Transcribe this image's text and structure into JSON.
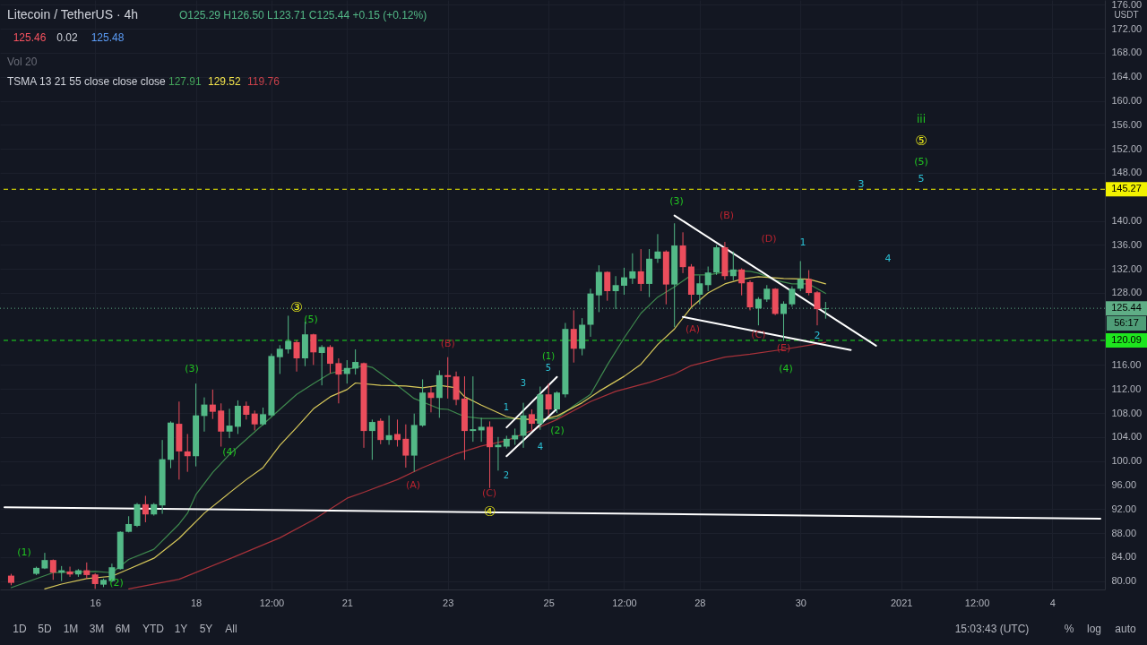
{
  "chart_data": {
    "type": "candlestick",
    "title": "Litecoin / TetherUS · 4h",
    "subtitle": "O125.29 H126.50 L123.71 C125.44 +0.15 (+0.12%)",
    "x": [
      "2020-12-14T08:00",
      "2020-12-14T20:00",
      "2020-12-15T00:00",
      "2020-12-15T04:00",
      "2020-12-15T08:00",
      "2020-12-15T12:00",
      "2020-12-15T16:00",
      "2020-12-15T20:00",
      "2020-12-16T00:00",
      "2020-12-16T04:00",
      "2020-12-16T08:00",
      "2020-12-16T12:00",
      "2020-12-16T16:00",
      "2020-12-16T20:00",
      "2020-12-17T00:00",
      "2020-12-17T04:00",
      "2020-12-17T08:00",
      "2020-12-17T12:00",
      "2020-12-17T16:00",
      "2020-12-17T20:00",
      "2020-12-18T00:00",
      "2020-12-18T04:00",
      "2020-12-18T08:00",
      "2020-12-18T12:00",
      "2020-12-18T16:00",
      "2020-12-18T20:00",
      "2020-12-19T00:00",
      "2020-12-19T04:00",
      "2020-12-19T08:00",
      "2020-12-19T12:00",
      "2020-12-19T16:00",
      "2020-12-19T20:00",
      "2020-12-20T00:00",
      "2020-12-20T04:00",
      "2020-12-20T08:00",
      "2020-12-20T12:00",
      "2020-12-20T16:00",
      "2020-12-20T20:00",
      "2020-12-21T00:00",
      "2020-12-21T04:00",
      "2020-12-21T08:00",
      "2020-12-21T12:00",
      "2020-12-21T16:00",
      "2020-12-21T20:00",
      "2020-12-22T00:00",
      "2020-12-22T04:00",
      "2020-12-22T08:00",
      "2020-12-22T12:00",
      "2020-12-22T16:00",
      "2020-12-22T20:00",
      "2020-12-23T00:00",
      "2020-12-23T04:00",
      "2020-12-23T08:00",
      "2020-12-23T12:00",
      "2020-12-23T16:00",
      "2020-12-23T20:00",
      "2020-12-24T00:00",
      "2020-12-24T04:00",
      "2020-12-24T08:00",
      "2020-12-24T12:00",
      "2020-12-24T16:00",
      "2020-12-24T20:00",
      "2020-12-25T00:00",
      "2020-12-25T04:00",
      "2020-12-25T08:00",
      "2020-12-25T12:00",
      "2020-12-25T16:00",
      "2020-12-25T20:00",
      "2020-12-26T00:00",
      "2020-12-26T04:00",
      "2020-12-26T08:00",
      "2020-12-26T12:00",
      "2020-12-26T16:00",
      "2020-12-26T20:00",
      "2020-12-27T00:00",
      "2020-12-27T04:00",
      "2020-12-27T08:00",
      "2020-12-27T12:00",
      "2020-12-27T16:00",
      "2020-12-27T20:00",
      "2020-12-28T00:00",
      "2020-12-28T04:00",
      "2020-12-28T08:00",
      "2020-12-28T12:00",
      "2020-12-28T16:00",
      "2020-12-28T20:00",
      "2020-12-29T00:00",
      "2020-12-29T04:00",
      "2020-12-29T08:00",
      "2020-12-29T12:00",
      "2020-12-29T16:00",
      "2020-12-29T20:00",
      "2020-12-30T00:00",
      "2020-12-30T04:00",
      "2020-12-30T08:00",
      "2020-12-30T12:00"
    ],
    "ohlc": [
      [
        80.9,
        81.2,
        79.3,
        79.7
      ],
      [
        81.2,
        82.4,
        81.0,
        82.2
      ],
      [
        82.1,
        84.7,
        82.0,
        83.5
      ],
      [
        83.5,
        83.6,
        80.2,
        81.4
      ],
      [
        81.4,
        82.5,
        80.0,
        81.8
      ],
      [
        81.6,
        82.4,
        80.7,
        81.1
      ],
      [
        81.1,
        82.0,
        80.7,
        81.8
      ],
      [
        81.8,
        83.1,
        80.4,
        81.0
      ],
      [
        81.1,
        81.3,
        78.7,
        79.5
      ],
      [
        79.4,
        80.4,
        79.0,
        80.2
      ],
      [
        80.0,
        82.9,
        79.8,
        82.3
      ],
      [
        82.0,
        88.3,
        81.9,
        88.2
      ],
      [
        88.2,
        90.8,
        88.1,
        89.5
      ],
      [
        89.2,
        93.0,
        89.0,
        92.8
      ],
      [
        92.8,
        94.2,
        89.8,
        91.1
      ],
      [
        91.1,
        93.0,
        90.9,
        92.8
      ],
      [
        92.6,
        103.5,
        91.2,
        100.3
      ],
      [
        100.2,
        106.6,
        98.8,
        106.4
      ],
      [
        106.2,
        109.9,
        96.9,
        101.6
      ],
      [
        101.6,
        104.5,
        98.2,
        100.8
      ],
      [
        100.8,
        112.9,
        99.1,
        107.6
      ],
      [
        107.5,
        110.6,
        104.9,
        109.4
      ],
      [
        109.4,
        111.9,
        107.0,
        108.2
      ],
      [
        108.4,
        109.6,
        102.4,
        104.9
      ],
      [
        104.9,
        108.7,
        103.8,
        105.9
      ],
      [
        105.7,
        110.1,
        104.5,
        109.2
      ],
      [
        109.2,
        109.9,
        106.9,
        107.7
      ],
      [
        107.9,
        108.4,
        105.1,
        106.1
      ],
      [
        106.1,
        108.9,
        105.9,
        107.8
      ],
      [
        107.6,
        117.9,
        107.4,
        117.5
      ],
      [
        117.3,
        119.3,
        114.5,
        118.7
      ],
      [
        118.6,
        124.2,
        117.9,
        120.0
      ],
      [
        119.8,
        120.1,
        114.9,
        117.1
      ],
      [
        117.1,
        123.2,
        115.8,
        121.1
      ],
      [
        121.1,
        121.2,
        116.0,
        118.1
      ],
      [
        118.0,
        119.3,
        112.6,
        119.0
      ],
      [
        119.0,
        119.3,
        114.6,
        116.2
      ],
      [
        116.3,
        117.1,
        109.6,
        114.4
      ],
      [
        114.5,
        116.8,
        112.9,
        115.5
      ],
      [
        115.4,
        118.6,
        114.4,
        116.5
      ],
      [
        116.3,
        116.4,
        102.2,
        105.0
      ],
      [
        105.0,
        106.9,
        100.2,
        106.5
      ],
      [
        106.7,
        107.1,
        102.8,
        103.5
      ],
      [
        103.5,
        107.6,
        102.7,
        104.3
      ],
      [
        104.5,
        106.9,
        102.4,
        103.5
      ],
      [
        103.7,
        106.1,
        98.9,
        100.9
      ],
      [
        100.9,
        107.9,
        98.2,
        106.0
      ],
      [
        105.9,
        113.6,
        105.7,
        111.4
      ],
      [
        111.4,
        112.4,
        108.1,
        110.5
      ],
      [
        110.5,
        115.1,
        107.2,
        114.3
      ],
      [
        114.3,
        117.3,
        110.4,
        114.0
      ],
      [
        114.1,
        114.9,
        109.3,
        110.2
      ],
      [
        110.4,
        114.1,
        100.2,
        105.0
      ],
      [
        105.0,
        114.1,
        103.2,
        105.3
      ],
      [
        105.1,
        107.2,
        103.2,
        105.7
      ],
      [
        105.7,
        106.6,
        95.5,
        102.3
      ],
      [
        102.3,
        104.0,
        98.4,
        102.7
      ],
      [
        102.4,
        104.2,
        102.1,
        103.7
      ],
      [
        103.6,
        105.4,
        102.7,
        104.3
      ],
      [
        104.2,
        109.7,
        102.2,
        107.6
      ],
      [
        107.8,
        108.6,
        105.2,
        106.2
      ],
      [
        106.2,
        112.4,
        105.2,
        111.1
      ],
      [
        111.1,
        112.9,
        107.6,
        108.6
      ],
      [
        108.6,
        111.6,
        108.0,
        111.4
      ],
      [
        111.1,
        123.0,
        110.6,
        122.0
      ],
      [
        122.0,
        125.1,
        116.4,
        118.7
      ],
      [
        118.7,
        123.8,
        117.6,
        122.7
      ],
      [
        122.7,
        128.7,
        120.7,
        127.9
      ],
      [
        127.6,
        132.6,
        124.8,
        131.5
      ],
      [
        131.5,
        131.6,
        126.7,
        128.3
      ],
      [
        128.3,
        130.8,
        125.3,
        129.3
      ],
      [
        129.2,
        132.2,
        127.7,
        130.6
      ],
      [
        130.4,
        134.6,
        129.5,
        131.6
      ],
      [
        131.6,
        135.3,
        128.3,
        129.5
      ],
      [
        129.5,
        135.3,
        127.3,
        133.7
      ],
      [
        133.7,
        137.8,
        133.0,
        134.9
      ],
      [
        134.9,
        135.1,
        126.1,
        129.4
      ],
      [
        129.4,
        139.6,
        122.3,
        135.9
      ],
      [
        135.9,
        138.1,
        131.3,
        132.3
      ],
      [
        132.4,
        132.8,
        125.8,
        127.7
      ],
      [
        127.7,
        130.9,
        126.1,
        129.6
      ],
      [
        129.3,
        132.4,
        128.3,
        131.4
      ],
      [
        131.4,
        136.0,
        131.0,
        135.6
      ],
      [
        135.6,
        136.5,
        130.2,
        130.8
      ],
      [
        130.8,
        134.9,
        130.1,
        131.9
      ],
      [
        131.9,
        132.1,
        127.6,
        129.6
      ],
      [
        129.8,
        130.1,
        125.1,
        125.6
      ],
      [
        125.4,
        127.3,
        122.6,
        127.0
      ],
      [
        126.9,
        129.3,
        126.5,
        128.7
      ],
      [
        128.7,
        128.8,
        124.3,
        124.5
      ],
      [
        124.5,
        126.6,
        120.0,
        126.2
      ],
      [
        126.1,
        129.1,
        125.7,
        128.7
      ],
      [
        128.7,
        133.3,
        128.3,
        130.3
      ],
      [
        130.3,
        131.8,
        127.6,
        128.0
      ],
      [
        128.1,
        128.3,
        122.6,
        125.29
      ],
      [
        125.29,
        126.5,
        123.71,
        125.44
      ]
    ],
    "colors": [
      "#eb4d5c",
      "#53b987",
      "#53b987",
      "#eb4d5c",
      "#53b987",
      "#eb4d5c",
      "#53b987",
      "#eb4d5c",
      "#eb4d5c",
      "#53b987",
      "#53b987",
      "#53b987",
      "#53b987",
      "#53b987",
      "#eb4d5c",
      "#53b987",
      "#53b987",
      "#53b987",
      "#eb4d5c",
      "#eb4d5c",
      "#53b987",
      "#53b987",
      "#eb4d5c",
      "#eb4d5c",
      "#53b987",
      "#53b987",
      "#eb4d5c",
      "#eb4d5c",
      "#53b987",
      "#53b987",
      "#53b987",
      "#53b987",
      "#eb4d5c",
      "#53b987",
      "#eb4d5c",
      "#53b987",
      "#eb4d5c",
      "#eb4d5c",
      "#53b987",
      "#53b987",
      "#eb4d5c",
      "#53b987",
      "#eb4d5c",
      "#53b987",
      "#eb4d5c",
      "#eb4d5c",
      "#53b987",
      "#53b987",
      "#eb4d5c",
      "#53b987",
      "#eb4d5c",
      "#eb4d5c",
      "#eb4d5c",
      "#53b987",
      "#53b987",
      "#eb4d5c",
      "#53b987",
      "#53b987",
      "#53b987",
      "#53b987",
      "#eb4d5c",
      "#53b987",
      "#eb4d5c",
      "#53b987",
      "#53b987",
      "#eb4d5c",
      "#53b987",
      "#53b987",
      "#53b987",
      "#eb4d5c",
      "#53b987",
      "#53b987",
      "#53b987",
      "#eb4d5c",
      "#53b987",
      "#53b987",
      "#eb4d5c",
      "#53b987",
      "#eb4d5c",
      "#eb4d5c",
      "#53b987",
      "#53b987",
      "#53b987",
      "#eb4d5c",
      "#53b987",
      "#eb4d5c",
      "#eb4d5c",
      "#53b987",
      "#53b987",
      "#eb4d5c",
      "#53b987",
      "#53b987",
      "#53b987",
      "#eb4d5c",
      "#eb4d5c",
      "#53b987"
    ],
    "series": [
      {
        "type": "line",
        "color": "#3f8a4e",
        "x": [
          "2020-12-14T08:00",
          "2020-12-15T04:00",
          "2020-12-16T00:00",
          "2020-12-16T08:00",
          "2020-12-16T16:00",
          "2020-12-17T04:00",
          "2020-12-17T16:00",
          "2020-12-17T20:00",
          "2020-12-18T00:00",
          "2020-12-18T08:00",
          "2020-12-18T16:00",
          "2020-12-19T00:00",
          "2020-12-19T08:00",
          "2020-12-19T16:00",
          "2020-12-20T00:00",
          "2020-12-20T08:00",
          "2020-12-20T16:00",
          "2020-12-21T08:00",
          "2020-12-21T12:00",
          "2020-12-22T00:00",
          "2020-12-22T08:00",
          "2020-12-22T20:00",
          "2020-12-23T00:00",
          "2020-12-23T08:00",
          "2020-12-23T16:00",
          "2020-12-24T04:00",
          "2020-12-24T20:00",
          "2020-12-25T04:00",
          "2020-12-25T12:00",
          "2020-12-25T20:00",
          "2020-12-26T04:00",
          "2020-12-26T12:00",
          "2020-12-26T20:00",
          "2020-12-27T04:00",
          "2020-12-27T12:00",
          "2020-12-27T20:00",
          "2020-12-28T04:00",
          "2020-12-28T16:00",
          "2020-12-29T00:00",
          "2020-12-29T04:00",
          "2020-12-29T12:00",
          "2020-12-29T20:00",
          "2020-12-30T04:00",
          "2020-12-30T12:00"
        ],
        "values": [
          78.9,
          81.4,
          81.6,
          81.4,
          83.6,
          85.3,
          89.5,
          91.3,
          94.4,
          98.1,
          101.1,
          103.6,
          106.1,
          108.6,
          111.1,
          112.9,
          114.6,
          115.9,
          115.6,
          112.6,
          110.4,
          108.7,
          108.6,
          107.4,
          107.1,
          107.1,
          106.9,
          107.1,
          109.2,
          111.1,
          116.0,
          120.5,
          124.6,
          127.3,
          129.0,
          131.0,
          131.0,
          131.7,
          131.6,
          131.3,
          130.1,
          129.5,
          129.5,
          127.91
        ]
      },
      {
        "type": "line",
        "color": "#d8c95a",
        "x": [
          "2020-12-15T00:00",
          "2020-12-15T08:00",
          "2020-12-15T20:00",
          "2020-12-16T08:00",
          "2020-12-16T16:00",
          "2020-12-17T04:00",
          "2020-12-17T16:00",
          "2020-12-18T04:00",
          "2020-12-18T16:00",
          "2020-12-19T00:00",
          "2020-12-19T08:00",
          "2020-12-19T16:00",
          "2020-12-20T00:00",
          "2020-12-20T08:00",
          "2020-12-20T16:00",
          "2020-12-21T00:00",
          "2020-12-21T04:00",
          "2020-12-21T16:00",
          "2020-12-22T04:00",
          "2020-12-22T12:00",
          "2020-12-22T20:00",
          "2020-12-23T04:00",
          "2020-12-23T08:00",
          "2020-12-23T16:00",
          "2020-12-24T04:00",
          "2020-12-24T08:00",
          "2020-12-24T20:00",
          "2020-12-25T04:00",
          "2020-12-25T16:00",
          "2020-12-26T00:00",
          "2020-12-26T12:00",
          "2020-12-26T20:00",
          "2020-12-27T04:00",
          "2020-12-27T12:00",
          "2020-12-27T20:00",
          "2020-12-28T04:00",
          "2020-12-28T12:00",
          "2020-12-28T20:00",
          "2020-12-29T04:00",
          "2020-12-29T16:00",
          "2020-12-30T04:00",
          "2020-12-30T12:00"
        ],
        "values": [
          78.7,
          79.5,
          80.4,
          80.8,
          82.0,
          83.8,
          87.1,
          91.3,
          94.7,
          96.9,
          98.9,
          102.6,
          105.6,
          108.7,
          110.7,
          111.9,
          113.0,
          112.6,
          112.5,
          112.2,
          112.6,
          112.2,
          110.7,
          109.3,
          107.4,
          107.1,
          106.8,
          107.5,
          109.7,
          111.6,
          114.1,
          116.1,
          119.4,
          122.0,
          125.6,
          128.0,
          129.5,
          130.3,
          130.7,
          130.4,
          130.3,
          129.52
        ]
      },
      {
        "type": "line",
        "color": "#a8323a",
        "x": [
          "2020-12-16T16:00",
          "2020-12-17T16:00",
          "2020-12-18T16:00",
          "2020-12-19T16:00",
          "2020-12-20T08:00",
          "2020-12-21T00:00",
          "2020-12-21T08:00",
          "2020-12-22T00:00",
          "2020-12-22T12:00",
          "2020-12-23T04:00",
          "2020-12-23T16:00",
          "2020-12-24T04:00",
          "2020-12-24T16:00",
          "2020-12-25T04:00",
          "2020-12-25T20:00",
          "2020-12-26T08:00",
          "2020-12-27T00:00",
          "2020-12-27T12:00",
          "2020-12-27T20:00",
          "2020-12-28T12:00",
          "2020-12-29T00:00",
          "2020-12-29T16:00",
          "2020-12-30T04:00",
          "2020-12-30T12:00"
        ],
        "values": [
          78.7,
          80.3,
          83.7,
          87.2,
          90.2,
          93.8,
          94.8,
          96.9,
          98.9,
          101.2,
          102.5,
          103.4,
          105.1,
          106.9,
          109.9,
          111.6,
          113.1,
          114.5,
          115.9,
          117.3,
          117.8,
          118.6,
          119.3,
          119.76
        ]
      },
      {
        "type": "line",
        "color": "#ffffff",
        "x": [
          "2020-12-14T04:49",
          "2021-01-04T22:54"
        ],
        "values": [
          92.3,
          90.4
        ]
      },
      {
        "type": "line",
        "color": "#ffffff",
        "x": [
          "2020-12-24T04:00",
          "2020-12-25T04:00"
        ],
        "values": [
          105.6,
          114.0
        ]
      },
      {
        "type": "line",
        "color": "#ffffff",
        "x": [
          "2020-12-24T04:00",
          "2020-12-25T04:00"
        ],
        "values": [
          100.8,
          108.7
        ]
      },
      {
        "type": "line",
        "color": "#ffffff",
        "x": [
          "2020-12-27T12:00",
          "2020-12-31T12:00"
        ],
        "values": [
          140.9,
          119.2
        ]
      },
      {
        "type": "line",
        "color": "#ffffff",
        "x": [
          "2020-12-27T16:00",
          "2020-12-31T00:00"
        ],
        "values": [
          124.0,
          118.5
        ]
      }
    ],
    "xlim": [
      "2020-12-14T04:49",
      "2021-01-04T22:54"
    ],
    "xticks": [
      {
        "value": "2020-12-16",
        "label": "16"
      },
      {
        "value": "2020-12-18",
        "label": "18"
      },
      {
        "value": "2020-12-19T12:00",
        "label": "12:00"
      },
      {
        "value": "2020-12-21",
        "label": "21"
      },
      {
        "value": "2020-12-23",
        "label": "23"
      },
      {
        "value": "2020-12-25",
        "label": "25"
      },
      {
        "value": "2020-12-26T12:00",
        "label": "12:00"
      },
      {
        "value": "2020-12-28",
        "label": "28"
      },
      {
        "value": "2020-12-30",
        "label": "30"
      },
      {
        "value": "2021-01-01",
        "label": "2021"
      },
      {
        "value": "2021-01-02T12:00",
        "label": "12:00"
      },
      {
        "value": "2021-01-04",
        "label": "4"
      }
    ],
    "ylim": [
      78.6,
      176.8
    ],
    "yticks": [
      {
        "value": 176,
        "label": "176.00"
      },
      {
        "value": 172,
        "label": "172.00"
      },
      {
        "value": 168,
        "label": "168.00"
      },
      {
        "value": 164,
        "label": "164.00"
      },
      {
        "value": 160,
        "label": "160.00"
      },
      {
        "value": 156,
        "label": "156.00"
      },
      {
        "value": 152,
        "label": "152.00"
      },
      {
        "value": 148,
        "label": "148.00"
      },
      {
        "value": 140,
        "label": "140.00"
      },
      {
        "value": 136,
        "label": "136.00"
      },
      {
        "value": 132,
        "label": "132.00"
      },
      {
        "value": 128,
        "label": "128.00"
      },
      {
        "value": 116,
        "label": "116.00"
      },
      {
        "value": 112,
        "label": "112.00"
      },
      {
        "value": 108,
        "label": "108.00"
      },
      {
        "value": 104,
        "label": "104.00"
      },
      {
        "value": 100,
        "label": "100.00"
      },
      {
        "value": 96,
        "label": "96.00"
      },
      {
        "value": 92,
        "label": "92.00"
      },
      {
        "value": 88,
        "label": "88.00"
      },
      {
        "value": 84,
        "label": "84.00"
      },
      {
        "value": 80,
        "label": "80.00"
      }
    ],
    "grid": true,
    "ref_lines": [
      {
        "axis": "y",
        "value": 145.27,
        "label": "145.27",
        "color": "#f2f200",
        "line_style": "dashed"
      },
      {
        "axis": "y",
        "value": 125.44,
        "label": "125.44",
        "color": "#5fae86",
        "line_style": "dotted"
      },
      {
        "axis": "y",
        "value": 120.09,
        "label": "120.09",
        "color": "#1ee61e",
        "line_style": "dashed"
      }
    ],
    "annotations": [
      "125.46",
      "0.02",
      "125.48",
      "Vol 20",
      "TSMA 13 21 55 close close close",
      "127.91",
      "129.52",
      "119.76",
      "USDT",
      "56:17",
      "1D",
      "5D",
      "1M",
      "3M",
      "6M",
      "YTD",
      "1Y",
      "5Y",
      "All",
      "15:03:43 (UTC)",
      "%",
      "log",
      "auto",
      "(1)",
      "(2)",
      "(3)",
      "(5)",
      "(A)",
      "(C)",
      "1",
      "2",
      "3",
      "4",
      "5",
      "(1)",
      "(2)",
      "(3)",
      "(A)",
      "(B)",
      "(D)",
      "(4)",
      "1",
      "3",
      "4",
      "5",
      "(5)",
      "⑤",
      "iii",
      {
        "text": "(4)",
        "x": "2020-12-18T16:00",
        "y": 101.5
      },
      {
        "text": "③",
        "x": "2020-12-20T00:00",
        "y": 125.6
      },
      {
        "text": "(B)",
        "x": "2020-12-23T00:00",
        "y": 119.5
      },
      {
        "text": "④",
        "x": "2020-12-23T20:00",
        "y": 91.6
      },
      {
        "text": "(C)",
        "x": "2020-12-29T04:00",
        "y": 121.0
      },
      {
        "text": "(E)",
        "x": "2020-12-29T16:00",
        "y": 118.8
      },
      {
        "text": "2",
        "x": "2020-12-30T08:00",
        "y": 120.8
      }
    ]
  }
}
